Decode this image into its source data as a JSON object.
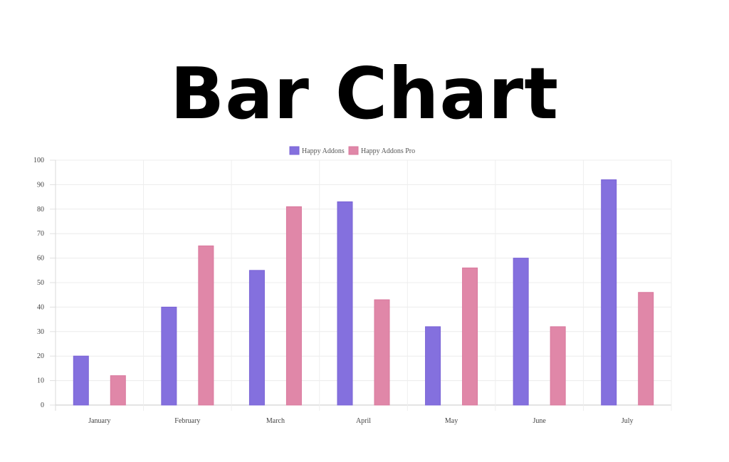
{
  "page": {
    "title": "Bar Chart"
  },
  "chart_data": {
    "type": "bar",
    "title": "",
    "xlabel": "",
    "ylabel": "",
    "categories": [
      "January",
      "February",
      "March",
      "April",
      "May",
      "June",
      "July"
    ],
    "series": [
      {
        "name": "Happy Addons",
        "values": [
          20,
          40,
          55,
          83,
          32,
          60,
          92
        ],
        "color": "#8470DE",
        "border": "#7A63D6"
      },
      {
        "name": "Happy Addons Pro",
        "values": [
          12,
          65,
          81,
          43,
          56,
          32,
          46
        ],
        "color": "#E087A8",
        "border": "#D9789D"
      }
    ],
    "ylim": [
      0,
      100
    ],
    "yticks": [
      0,
      10,
      20,
      30,
      40,
      50,
      60,
      70,
      80,
      90,
      100
    ],
    "grid": true,
    "legend_position": "top-center"
  }
}
